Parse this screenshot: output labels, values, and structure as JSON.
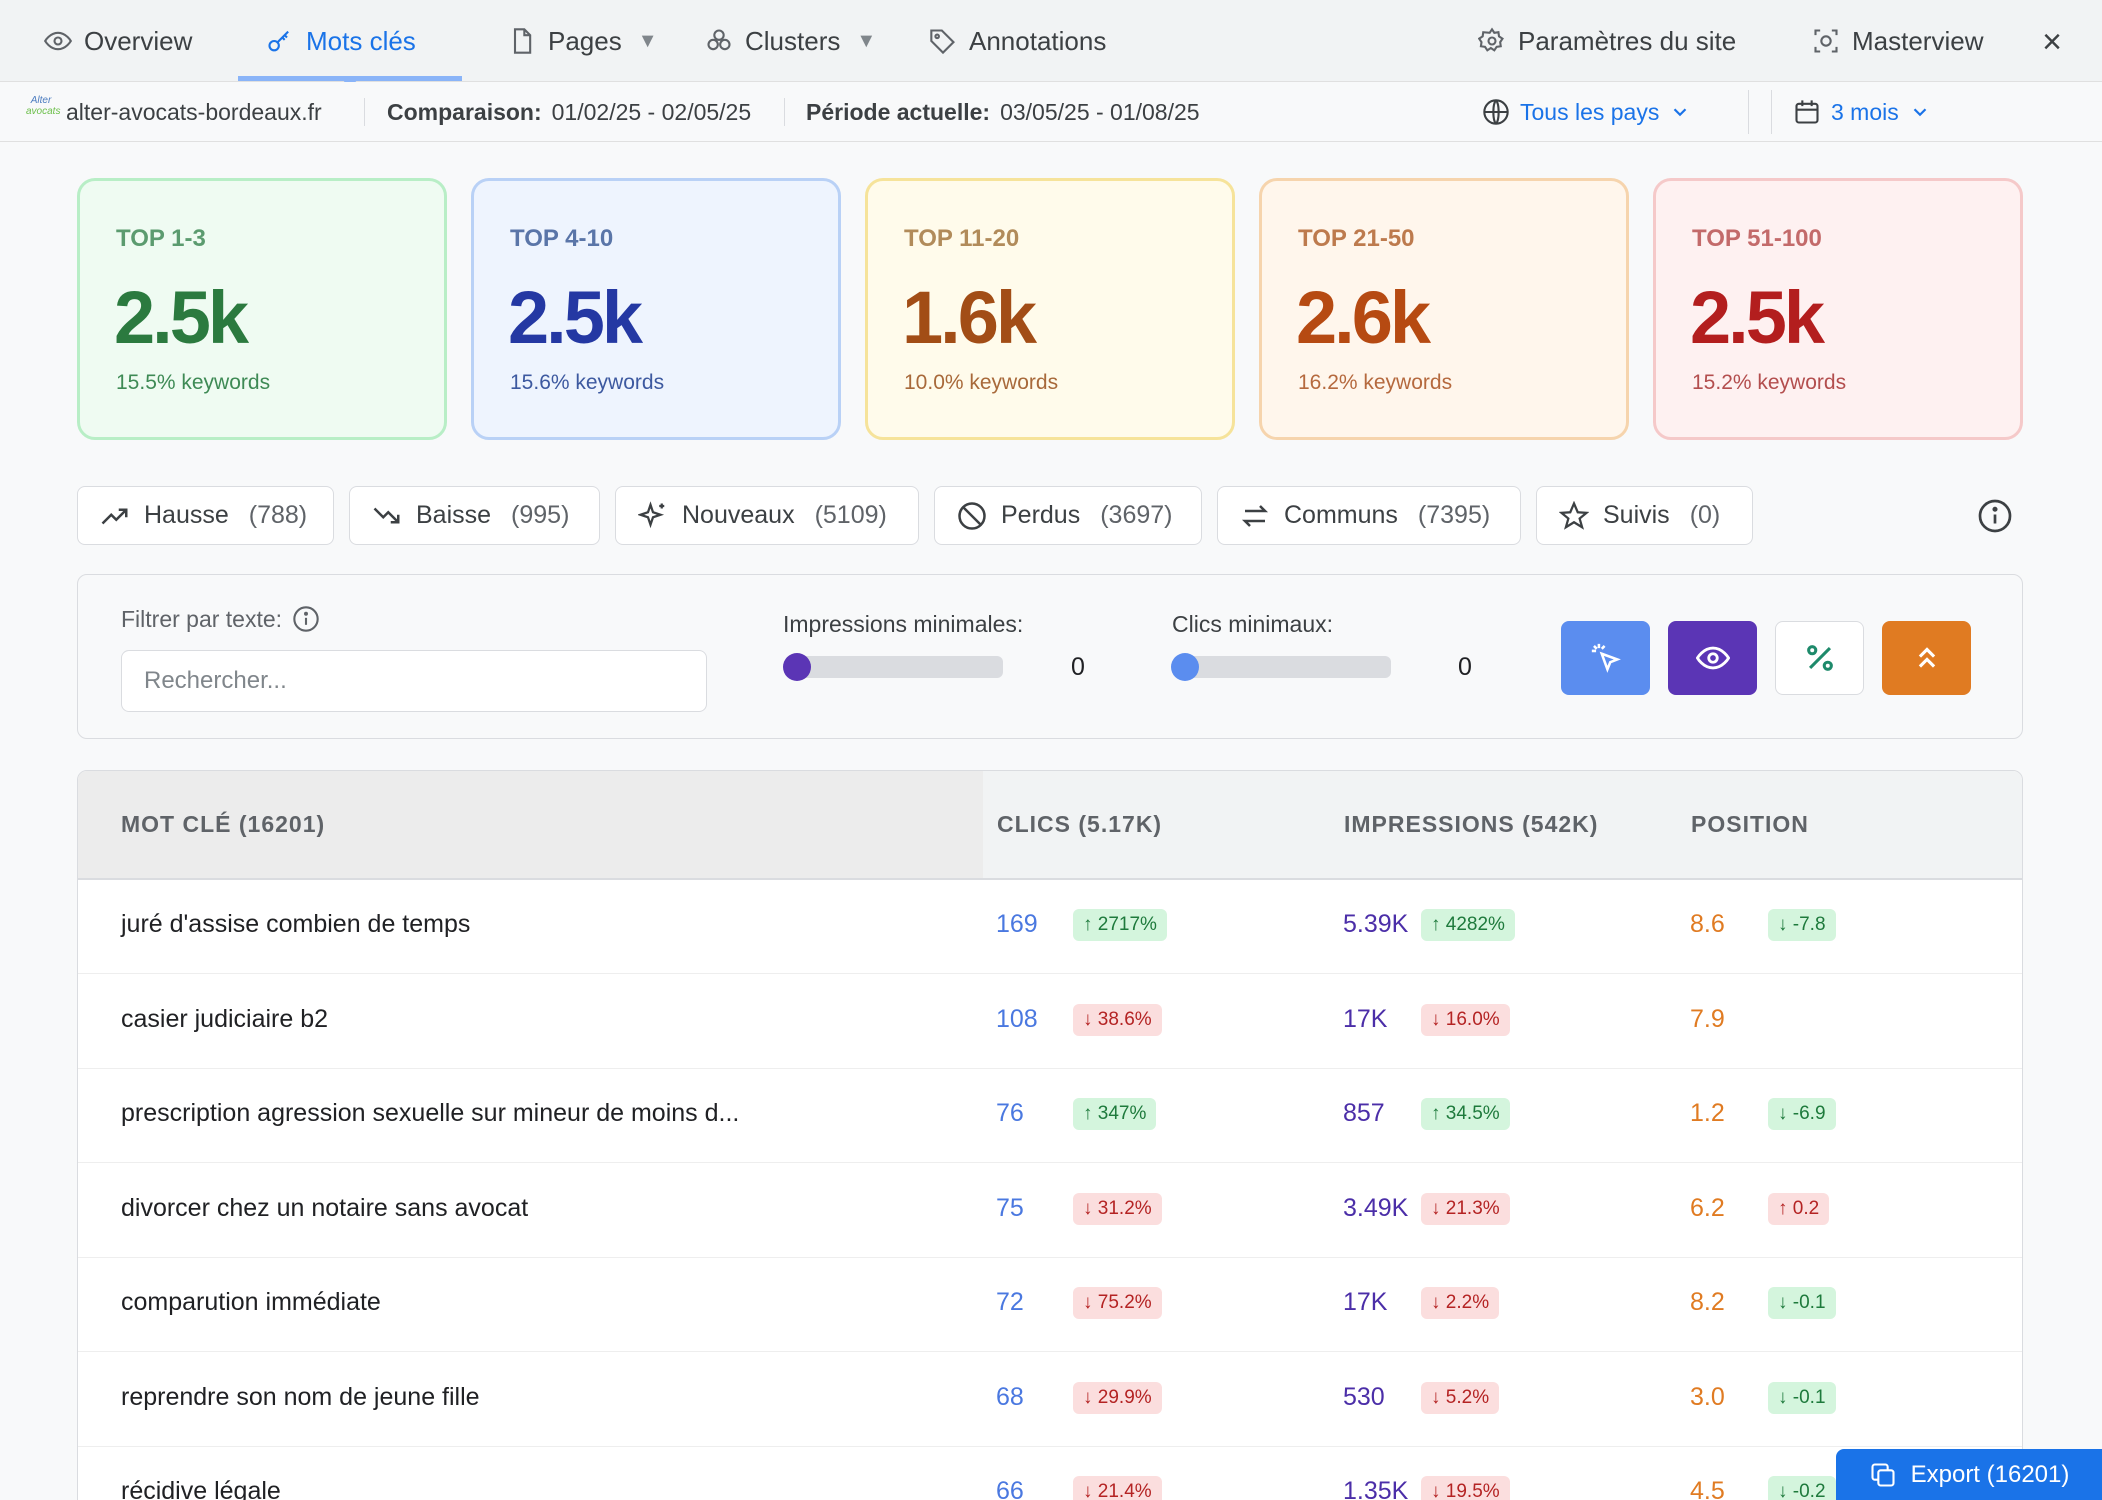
{
  "nav": {
    "tabs": [
      {
        "label": "Overview",
        "icon": "eye-icon"
      },
      {
        "label": "Mots clés",
        "icon": "key-icon",
        "active": true
      },
      {
        "label": "Pages",
        "icon": "file-icon",
        "caret": "▼"
      },
      {
        "label": "Clusters",
        "icon": "clusters-icon",
        "caret": "▼"
      },
      {
        "label": "Annotations",
        "icon": "tag-icon"
      }
    ],
    "settings_label": "Paramètres du site",
    "masterview_label": "Masterview",
    "close_label": "×"
  },
  "infobar": {
    "logo_text_top": "Alter",
    "logo_text_bottom": "avocats",
    "site": "alter-avocats-bordeaux.fr",
    "comparison_label": "Comparaison:",
    "comparison_range": "01/02/25 - 02/05/25",
    "current_label": "Période actuelle:",
    "current_range": "03/05/25 - 01/08/25",
    "country": "Tous les pays",
    "period": "3 mois"
  },
  "cards": [
    {
      "label": "TOP 1-3",
      "value": "2.5k",
      "sub": "15.5% keywords"
    },
    {
      "label": "TOP 4-10",
      "value": "2.5k",
      "sub": "15.6% keywords"
    },
    {
      "label": "TOP 11-20",
      "value": "1.6k",
      "sub": "10.0% keywords"
    },
    {
      "label": "TOP 21-50",
      "value": "2.6k",
      "sub": "16.2% keywords"
    },
    {
      "label": "TOP 51-100",
      "value": "2.5k",
      "sub": "15.2% keywords"
    }
  ],
  "chips": [
    {
      "label": "Hausse",
      "count": "(788)"
    },
    {
      "label": "Baisse",
      "count": "(995)"
    },
    {
      "label": "Nouveaux",
      "count": "(5109)"
    },
    {
      "label": "Perdus",
      "count": "(3697)"
    },
    {
      "label": "Communs",
      "count": "(7395)"
    },
    {
      "label": "Suivis",
      "count": "(0)"
    }
  ],
  "filters": {
    "text_label": "Filtrer par texte:",
    "search_placeholder": "Rechercher...",
    "impressions_label": "Impressions minimales:",
    "impressions_value": "0",
    "clicks_label": "Clics minimaux:",
    "clicks_value": "0"
  },
  "colors": {
    "clicks_button": "#5b8def",
    "impressions_button": "#5b35b5",
    "percent_button": "#ffffff",
    "top_button": "#e07b22"
  },
  "table": {
    "headers": {
      "keyword": "MOT CLÉ (16201)",
      "clicks": "CLICS (5.17K)",
      "impressions": "IMPRESSIONS (542K)",
      "position": "POSITION"
    },
    "rows": [
      {
        "kw": "juré d'assise combien de temps",
        "clicks": "169",
        "clicks_delta": "↑ 2717%",
        "clicks_dir": "up",
        "imp": "5.39K",
        "imp_delta": "↑ 4282%",
        "imp_dir": "up",
        "pos": "8.6",
        "pos_delta": "↓ -7.8",
        "pos_dir": "up"
      },
      {
        "kw": "casier judiciaire b2",
        "clicks": "108",
        "clicks_delta": "↓ 38.6%",
        "clicks_dir": "dn",
        "imp": "17K",
        "imp_delta": "↓ 16.0%",
        "imp_dir": "dn",
        "pos": "7.9",
        "pos_delta": "",
        "pos_dir": ""
      },
      {
        "kw": "prescription agression sexuelle sur mineur de moins d...",
        "clicks": "76",
        "clicks_delta": "↑ 347%",
        "clicks_dir": "up",
        "imp": "857",
        "imp_delta": "↑ 34.5%",
        "imp_dir": "up",
        "pos": "1.2",
        "pos_delta": "↓ -6.9",
        "pos_dir": "up"
      },
      {
        "kw": "divorcer chez un notaire sans avocat",
        "clicks": "75",
        "clicks_delta": "↓ 31.2%",
        "clicks_dir": "dn",
        "imp": "3.49K",
        "imp_delta": "↓ 21.3%",
        "imp_dir": "dn",
        "pos": "6.2",
        "pos_delta": "↑ 0.2",
        "pos_dir": "dn"
      },
      {
        "kw": "comparution immédiate",
        "clicks": "72",
        "clicks_delta": "↓ 75.2%",
        "clicks_dir": "dn",
        "imp": "17K",
        "imp_delta": "↓ 2.2%",
        "imp_dir": "dn",
        "pos": "8.2",
        "pos_delta": "↓ -0.1",
        "pos_dir": "up"
      },
      {
        "kw": "reprendre son nom de jeune fille",
        "clicks": "68",
        "clicks_delta": "↓ 29.9%",
        "clicks_dir": "dn",
        "imp": "530",
        "imp_delta": "↓ 5.2%",
        "imp_dir": "dn",
        "pos": "3.0",
        "pos_delta": "↓ -0.1",
        "pos_dir": "up"
      },
      {
        "kw": "récidive légale",
        "clicks": "66",
        "clicks_delta": "↓ 21.4%",
        "clicks_dir": "dn",
        "imp": "1.35K",
        "imp_delta": "↓ 19.5%",
        "imp_dir": "dn",
        "pos": "4.5",
        "pos_delta": "↓ -0.2",
        "pos_dir": "up"
      }
    ]
  },
  "export_label": "Export (16201)"
}
